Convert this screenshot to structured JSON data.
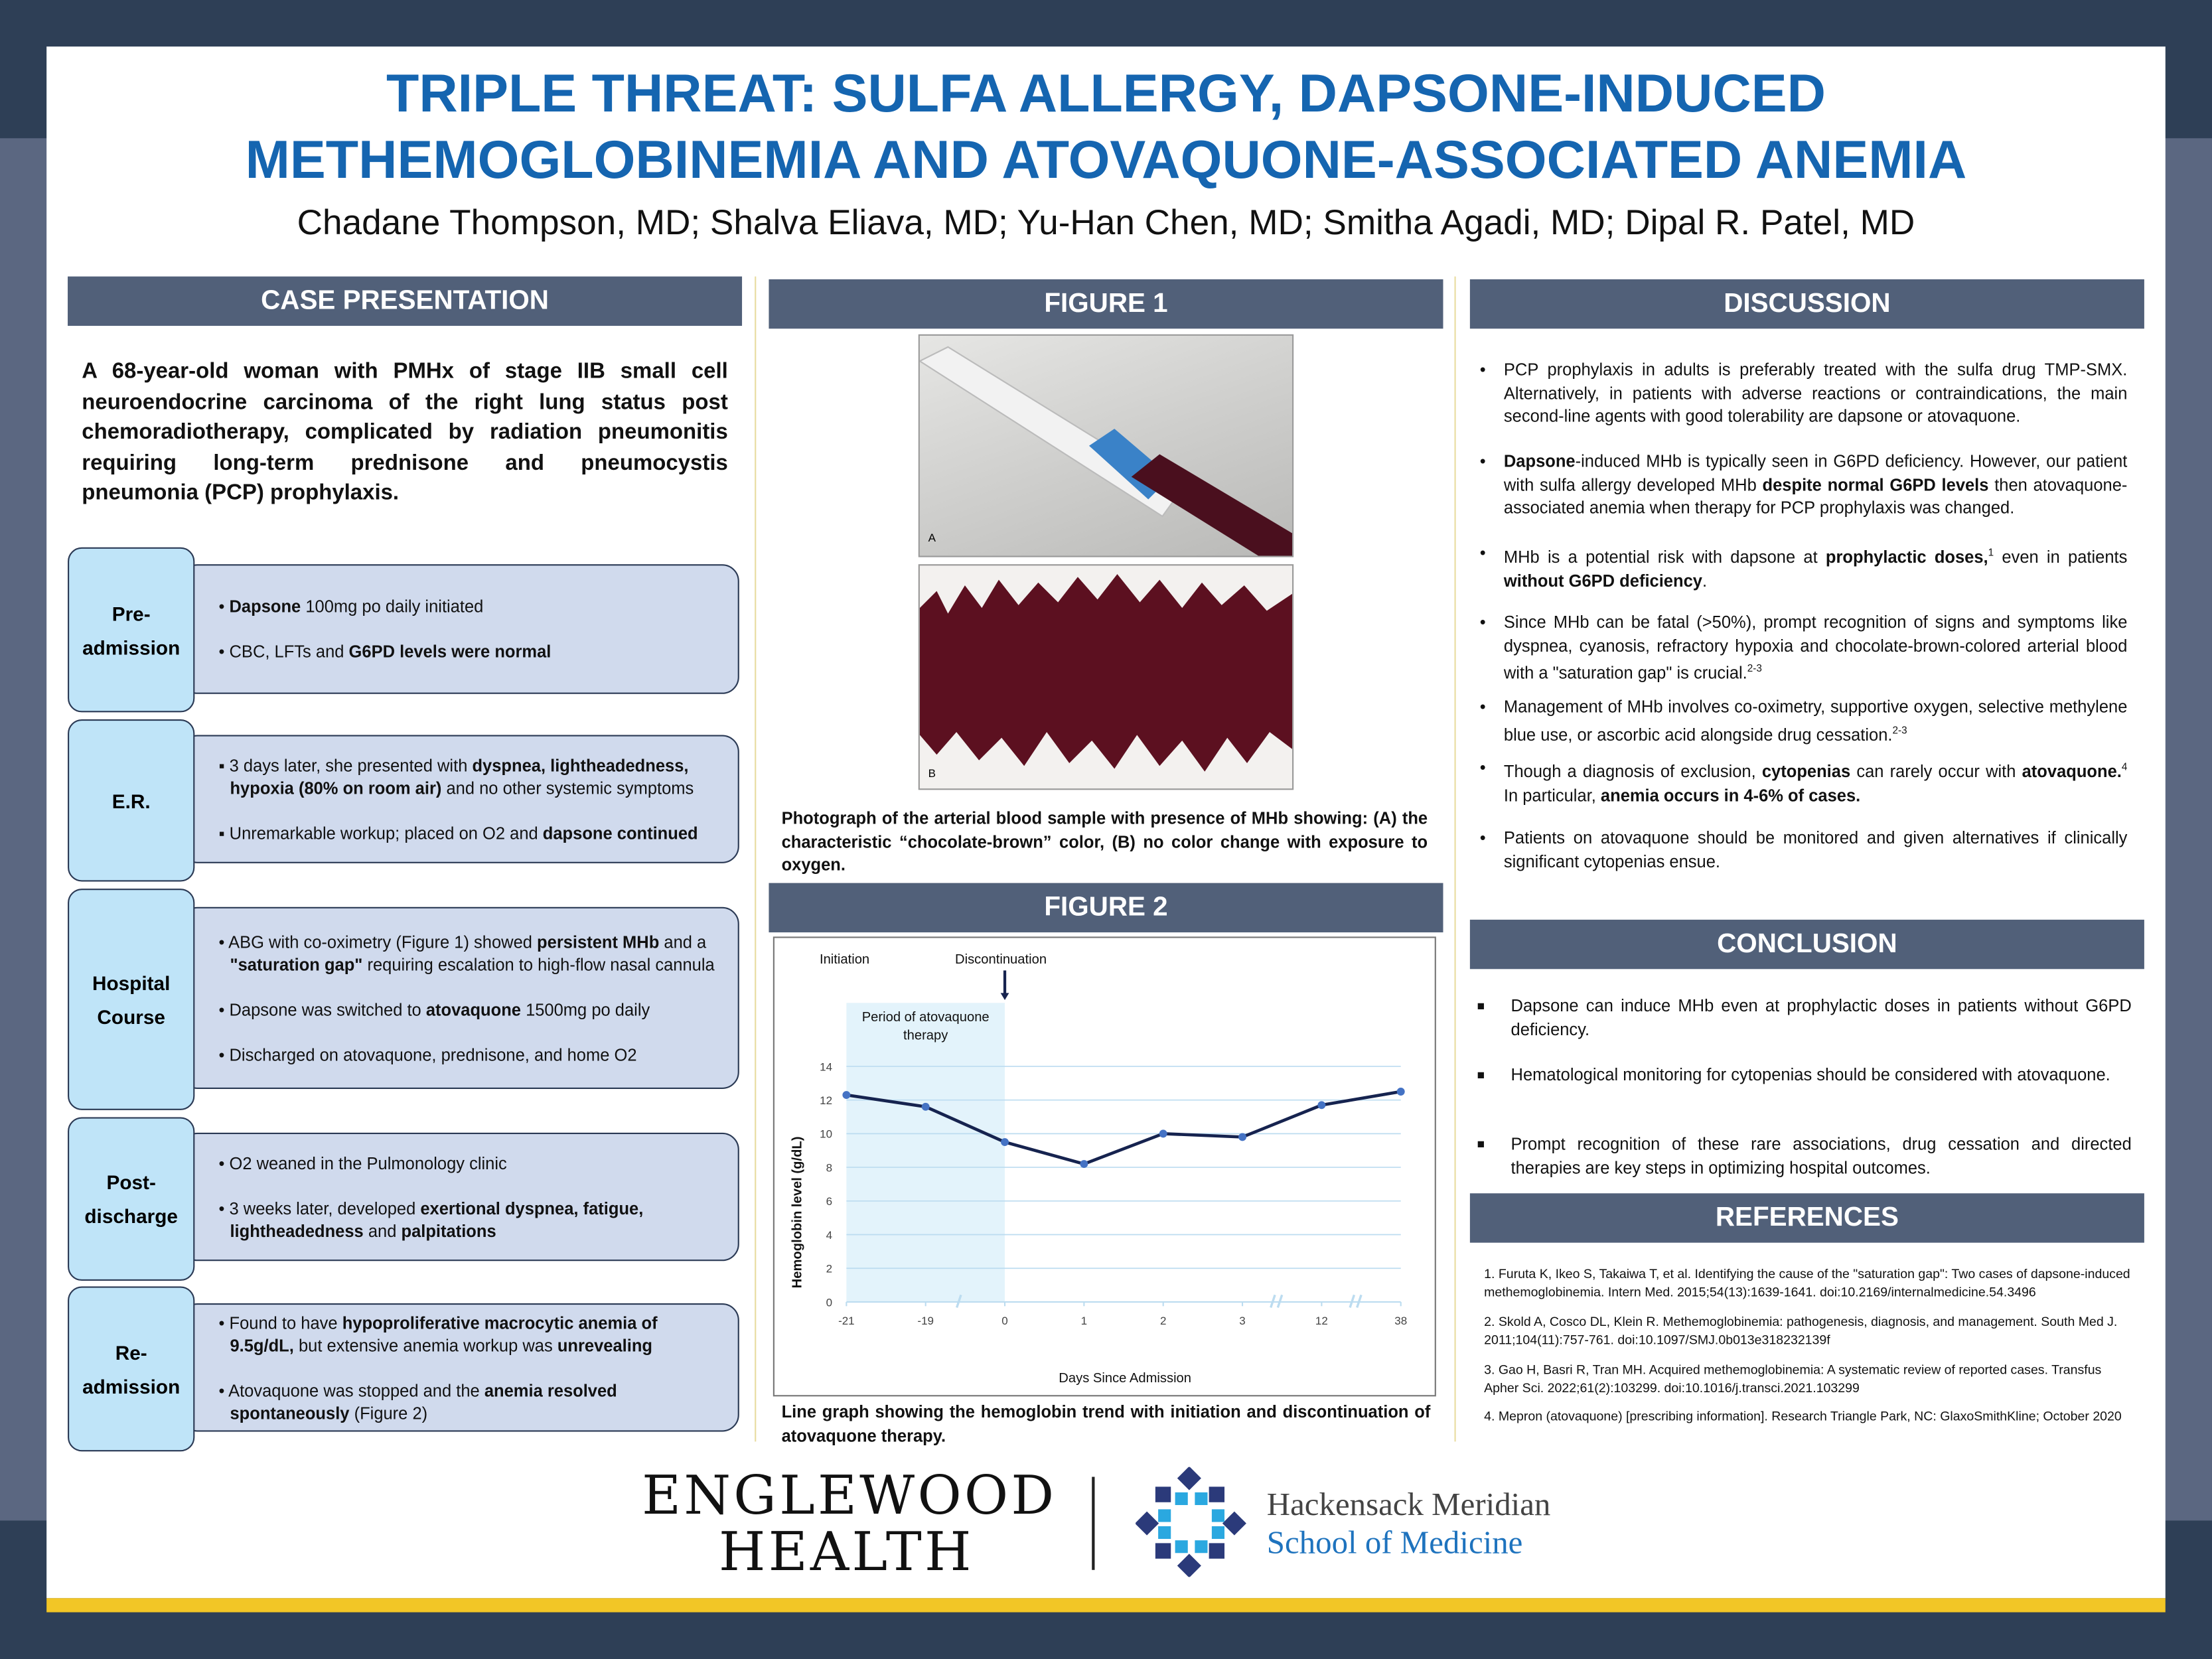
{
  "poster": {
    "title_line1": "TRIPLE THREAT: SULFA ALLERGY, DAPSONE-INDUCED",
    "title_line2": "METHEMOGLOBINEMIA AND ATOVAQUONE-ASSOCIATED ANEMIA",
    "authors": "Chadane Thompson, MD; Shalva Eliava, MD; Yu-Han Chen, MD; Smitha Agadi, MD; Dipal R. Patel, MD",
    "colors": {
      "title": "#1565b0",
      "header_bar": "#516079",
      "timeline_label": "#bfe4f8",
      "timeline_box": "#d0daed",
      "accent_strip": "#f2c626",
      "frame": "#2e3f56"
    }
  },
  "case": {
    "header": "CASE PRESENTATION",
    "intro": "A 68-year-old woman with PMHx of stage IIB small cell neuroendocrine carcinoma of the right lung status post chemoradiotherapy, complicated by radiation pneumonitis requiring long-term prednisone and pneumocystis pneumonia (PCP) prophylaxis.",
    "timeline": [
      {
        "label": "Pre-admission",
        "bullet": "•",
        "items": [
          [
            {
              "t": "Dapsone",
              "b": true
            },
            {
              "t": " 100mg po daily initiated"
            }
          ],
          [
            {
              "t": "CBC, LFTs and "
            },
            {
              "t": "G6PD levels were normal",
              "b": true
            }
          ]
        ]
      },
      {
        "label": "E.R.",
        "bullet": "▪",
        "items": [
          [
            {
              "t": "3 days later, she presented with "
            },
            {
              "t": "dyspnea, lightheadedness, hypoxia (80% on room air)",
              "b": true
            },
            {
              "t": " and no other systemic symptoms"
            }
          ],
          [
            {
              "t": "Unremarkable workup; placed on O2 and "
            },
            {
              "t": "dapsone continued",
              "b": true
            }
          ]
        ]
      },
      {
        "label": "Hospital Course",
        "bullet": "•",
        "items": [
          [
            {
              "t": "ABG with co-oximetry (Figure 1) showed "
            },
            {
              "t": "persistent MHb",
              "b": true
            },
            {
              "t": " and a "
            },
            {
              "t": "\"saturation gap\"",
              "b": true
            },
            {
              "t": " requiring escalation to high-flow nasal cannula"
            }
          ],
          [
            {
              "t": "Dapsone was switched to "
            },
            {
              "t": "atovaquone",
              "b": true
            },
            {
              "t": " 1500mg po daily"
            }
          ],
          [
            {
              "t": "Discharged on atovaquone, prednisone, and home O2"
            }
          ]
        ]
      },
      {
        "label": "Post-discharge",
        "bullet": "•",
        "items": [
          [
            {
              "t": "O2 weaned in the Pulmonology clinic"
            }
          ],
          [
            {
              "t": "3 weeks later, developed "
            },
            {
              "t": "exertional dyspnea, fatigue, lightheadedness",
              "b": true
            },
            {
              "t": " and "
            },
            {
              "t": "palpitations",
              "b": true
            }
          ]
        ]
      },
      {
        "label": "Re-admission",
        "bullet": "•",
        "items": [
          [
            {
              "t": "Found to have "
            },
            {
              "t": "hypoproliferative macrocytic anemia of 9.5g/dL,",
              "b": true
            },
            {
              "t": " but extensive anemia workup was "
            },
            {
              "t": "unrevealing",
              "b": true
            }
          ],
          [
            {
              "t": "Atovaquone was stopped and the "
            },
            {
              "t": "anemia resolved spontaneously",
              "b": true
            },
            {
              "t": " (Figure 2)"
            }
          ]
        ]
      }
    ]
  },
  "figure1": {
    "header": "FIGURE 1",
    "panel_a": "A",
    "panel_b": "B",
    "caption": "Photograph of the arterial blood sample with presence of MHb showing: (A) the characteristic “chocolate-brown” color, (B) no color change with exposure to oxygen."
  },
  "figure2": {
    "header": "FIGURE 2",
    "caption": "Line graph showing the hemoglobin trend with initiation and discontinuation of atovaquone therapy."
  },
  "chart_data": {
    "type": "line",
    "title": "",
    "xlabel": "Days Since Admission",
    "ylabel": "Hemoglobin level (g/dL)",
    "categories": [
      "-21",
      "-19",
      "0",
      "1",
      "2",
      "3",
      "12",
      "38"
    ],
    "values": [
      12.3,
      11.6,
      9.5,
      8.2,
      10.0,
      9.8,
      11.7,
      12.5
    ],
    "ylim": [
      0,
      14
    ],
    "yticks": [
      0,
      2,
      4,
      6,
      8,
      10,
      12,
      14
    ],
    "grid": true,
    "axis_breaks_after": [
      "-19",
      "3",
      "12"
    ],
    "annotations": {
      "initiation": "Initiation",
      "discontinuation": "Discontinuation",
      "shaded_period": "Period of atovaquone therapy",
      "shaded_from": "-21",
      "shaded_to": "0"
    },
    "colors": {
      "line": "#16234f",
      "marker": "#4472c4",
      "shade": "#e3f3fb",
      "grid": "#bcdcf0"
    }
  },
  "discussion": {
    "header": "DISCUSSION",
    "bullets": [
      [
        {
          "t": "PCP prophylaxis in adults is preferably treated with the sulfa drug TMP-SMX. Alternatively, in patients with adverse reactions or contraindications, the main second-line agents with good tolerability are dapsone or atovaquone."
        }
      ],
      [
        {
          "t": "Dapsone",
          "b": true
        },
        {
          "t": "-induced MHb is typically seen in G6PD deficiency. However, our patient with sulfa allergy developed MHb "
        },
        {
          "t": "despite normal G6PD levels",
          "b": true
        },
        {
          "t": " then atovaquone-associated anemia when therapy for PCP prophylaxis was changed."
        }
      ],
      [
        {
          "t": "MHb is a potential risk with dapsone at "
        },
        {
          "t": "prophylactic doses,",
          "b": true
        },
        {
          "t": "1",
          "sup": true
        },
        {
          "t": " even in patients "
        },
        {
          "t": "without G6PD deficiency",
          "b": true
        },
        {
          "t": "."
        }
      ],
      [
        {
          "t": "Since MHb can be fatal (>50%), prompt recognition of signs and symptoms like dyspnea, cyanosis, refractory hypoxia and chocolate-brown-colored arterial blood with a \"saturation gap\" is crucial."
        },
        {
          "t": "2-3",
          "sup": true
        }
      ],
      [
        {
          "t": "Management of MHb involves co-oximetry, supportive oxygen, selective methylene blue use, or ascorbic acid alongside drug cessation."
        },
        {
          "t": "2-3",
          "sup": true
        }
      ],
      [
        {
          "t": "Though a diagnosis of exclusion, "
        },
        {
          "t": "cytopenias",
          "b": true
        },
        {
          "t": " can rarely occur with "
        },
        {
          "t": "atovaquone.",
          "b": true
        },
        {
          "t": "4",
          "sup": true
        },
        {
          "t": " In particular, "
        },
        {
          "t": "anemia occurs in 4-6% of cases.",
          "b": true
        }
      ],
      [
        {
          "t": "Patients on atovaquone should be monitored and given alternatives if clinically significant cytopenias ensue."
        }
      ]
    ]
  },
  "conclusion": {
    "header": "CONCLUSION",
    "bullets": [
      "Dapsone can induce MHb even at prophylactic doses in patients without G6PD deficiency.",
      "Hematological monitoring for cytopenias should be considered with atovaquone.",
      "Prompt recognition of these rare associations, drug cessation and directed therapies are key steps in optimizing hospital outcomes."
    ]
  },
  "references": {
    "header": "REFERENCES",
    "items": [
      "1. Furuta K, Ikeo S, Takaiwa T, et al. Identifying the cause of the \"saturation gap\": Two cases of dapsone-induced methemoglobinemia. Intern Med. 2015;54(13):1639-1641. doi:10.2169/internalmedicine.54.3496",
      "2. Skold A, Cosco DL, Klein R. Methemoglobinemia: pathogenesis, diagnosis, and management. South Med J. 2011;104(11):757-761. doi:10.1097/SMJ.0b013e318232139f",
      "3. Gao H, Basri R, Tran MH. Acquired methemoglobinemia: A systematic review of reported cases. Transfus Apher Sci. 2022;61(2):103299. doi:10.1016/j.transci.2021.103299",
      "4. Mepron (atovaquone) [prescribing information]. Research Triangle Park, NC: GlaxoSmithKline; October 2020"
    ]
  },
  "logos": {
    "englewood_line1": "ENGLEWOOD",
    "englewood_line2": "HEALTH",
    "hmh_line1": "Hackensack Meridian",
    "hmh_line2": "School of Medicine"
  }
}
